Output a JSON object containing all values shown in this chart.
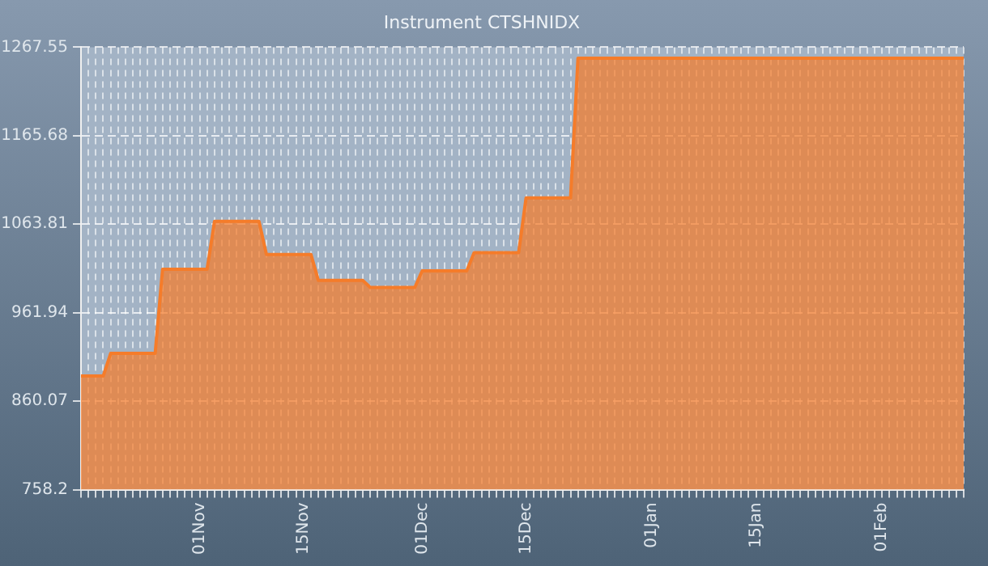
{
  "chart_data": {
    "type": "area",
    "title": "Instrument CTSHNIDX",
    "categories": [
      null,
      null,
      null,
      null,
      null,
      null,
      null,
      null,
      null,
      null,
      null,
      null,
      null,
      null,
      null,
      null,
      "01Nov",
      null,
      null,
      null,
      null,
      null,
      null,
      null,
      null,
      null,
      null,
      null,
      null,
      null,
      "15Nov",
      null,
      null,
      null,
      null,
      null,
      null,
      null,
      null,
      null,
      null,
      null,
      null,
      null,
      null,
      null,
      "01Dec",
      null,
      null,
      null,
      null,
      null,
      null,
      null,
      null,
      null,
      null,
      null,
      null,
      null,
      "15Dec",
      null,
      null,
      null,
      null,
      null,
      null,
      null,
      null,
      null,
      null,
      null,
      null,
      null,
      null,
      null,
      null,
      "01Jan",
      null,
      null,
      null,
      null,
      null,
      null,
      null,
      null,
      null,
      null,
      null,
      null,
      null,
      "15Jan",
      null,
      null,
      null,
      null,
      null,
      null,
      null,
      null,
      null,
      null,
      null,
      null,
      null,
      null,
      null,
      null,
      "01Feb",
      null,
      null,
      null,
      null,
      null,
      null,
      null,
      null,
      null,
      null,
      null
    ],
    "series": [
      {
        "color": "#f57c2a",
        "values": [
          889,
          889,
          889,
          889,
          915,
          915,
          915,
          915,
          915,
          915,
          915,
          1012,
          1012,
          1012,
          1012,
          1012,
          1012,
          1012,
          1067,
          1067,
          1067,
          1067,
          1067,
          1067,
          1067,
          1029,
          1029,
          1029,
          1029,
          1029,
          1029,
          1029,
          999,
          999,
          999,
          999,
          999,
          999,
          999,
          991,
          991,
          991,
          991,
          991,
          991,
          991,
          1010,
          1010,
          1010,
          1010,
          1010,
          1010,
          1010,
          1031,
          1031,
          1031,
          1031,
          1031,
          1031,
          1031,
          1094,
          1094,
          1094,
          1094,
          1094,
          1094,
          1094,
          1255,
          1255,
          1255,
          1255,
          1255,
          1255,
          1255,
          1255,
          1255,
          1255,
          1255,
          1255,
          1255,
          1255,
          1255,
          1255,
          1255,
          1255,
          1255,
          1255,
          1255,
          1255,
          1255,
          1255,
          1255,
          1255,
          1255,
          1255,
          1255,
          1255,
          1255,
          1255,
          1255,
          1255,
          1255,
          1255,
          1255,
          1255,
          1255,
          1255,
          1255,
          1255,
          1255,
          1255,
          1255,
          1255,
          1255,
          1255,
          1255,
          1255,
          1255,
          1255,
          1255
        ]
      }
    ],
    "ylim": [
      758.2,
      1267.55
    ],
    "yticks": [
      758.2,
      860.07,
      961.94,
      1063.81,
      1165.68,
      1267.55
    ],
    "grid": true,
    "legend": false
  }
}
